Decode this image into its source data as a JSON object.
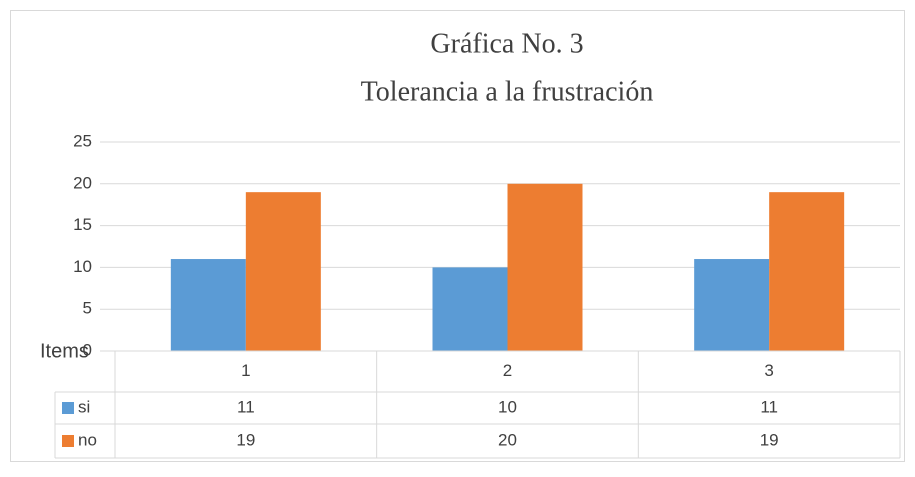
{
  "chart_data": {
    "type": "bar",
    "title": "Gráfica No. 3",
    "subtitle": "Tolerancia a la frustración",
    "x_label": "Items",
    "categories": [
      "1",
      "2",
      "3"
    ],
    "series": [
      {
        "name": "si",
        "color": "#5b9bd5",
        "values": [
          11,
          10,
          11
        ]
      },
      {
        "name": "no",
        "color": "#ed7d31",
        "values": [
          19,
          20,
          19
        ]
      }
    ],
    "ylim": [
      0,
      25
    ],
    "yticks": [
      0,
      5,
      10,
      15,
      20,
      25
    ],
    "grid": true,
    "data_table": true
  }
}
